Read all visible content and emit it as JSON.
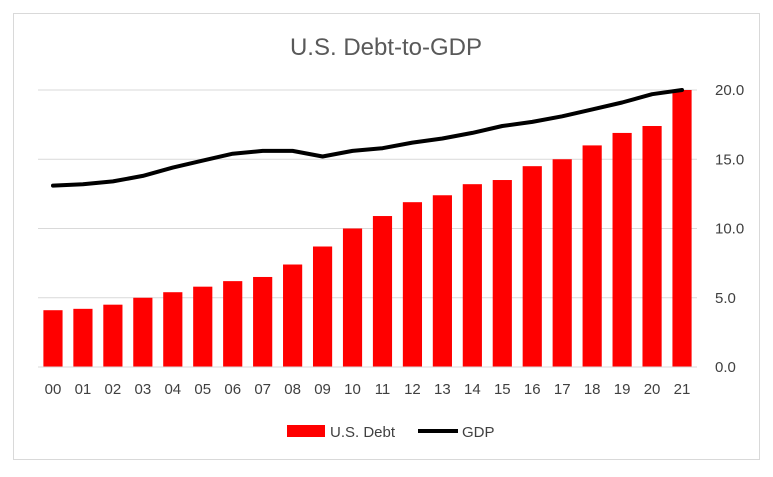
{
  "chart_data": {
    "type": "bar",
    "title": "U.S. Debt-to-GDP",
    "categories": [
      "00",
      "01",
      "02",
      "03",
      "04",
      "05",
      "06",
      "07",
      "08",
      "09",
      "10",
      "11",
      "12",
      "13",
      "14",
      "15",
      "16",
      "17",
      "18",
      "19",
      "20",
      "21"
    ],
    "series": [
      {
        "name": "U.S. Debt",
        "type": "bar",
        "color": "#ff0000",
        "values": [
          4.1,
          4.2,
          4.5,
          5.0,
          5.4,
          5.8,
          6.2,
          6.5,
          7.4,
          8.7,
          10.0,
          10.9,
          11.9,
          12.4,
          13.2,
          13.5,
          14.5,
          15.0,
          16.0,
          16.9,
          17.4,
          20.0
        ]
      },
      {
        "name": "GDP",
        "type": "line",
        "color": "#000000",
        "values": [
          13.1,
          13.2,
          13.4,
          13.8,
          14.4,
          14.9,
          15.4,
          15.6,
          15.6,
          15.2,
          15.6,
          15.8,
          16.2,
          16.5,
          16.9,
          17.4,
          17.7,
          18.1,
          18.6,
          19.1,
          19.7,
          20.0
        ]
      }
    ],
    "y_ticks": [
      "0.0",
      "5.0",
      "10.0",
      "15.0",
      "20.0"
    ],
    "ylim": [
      0,
      20
    ],
    "y_axis_position": "right",
    "grid": true,
    "legend_position": "bottom"
  }
}
